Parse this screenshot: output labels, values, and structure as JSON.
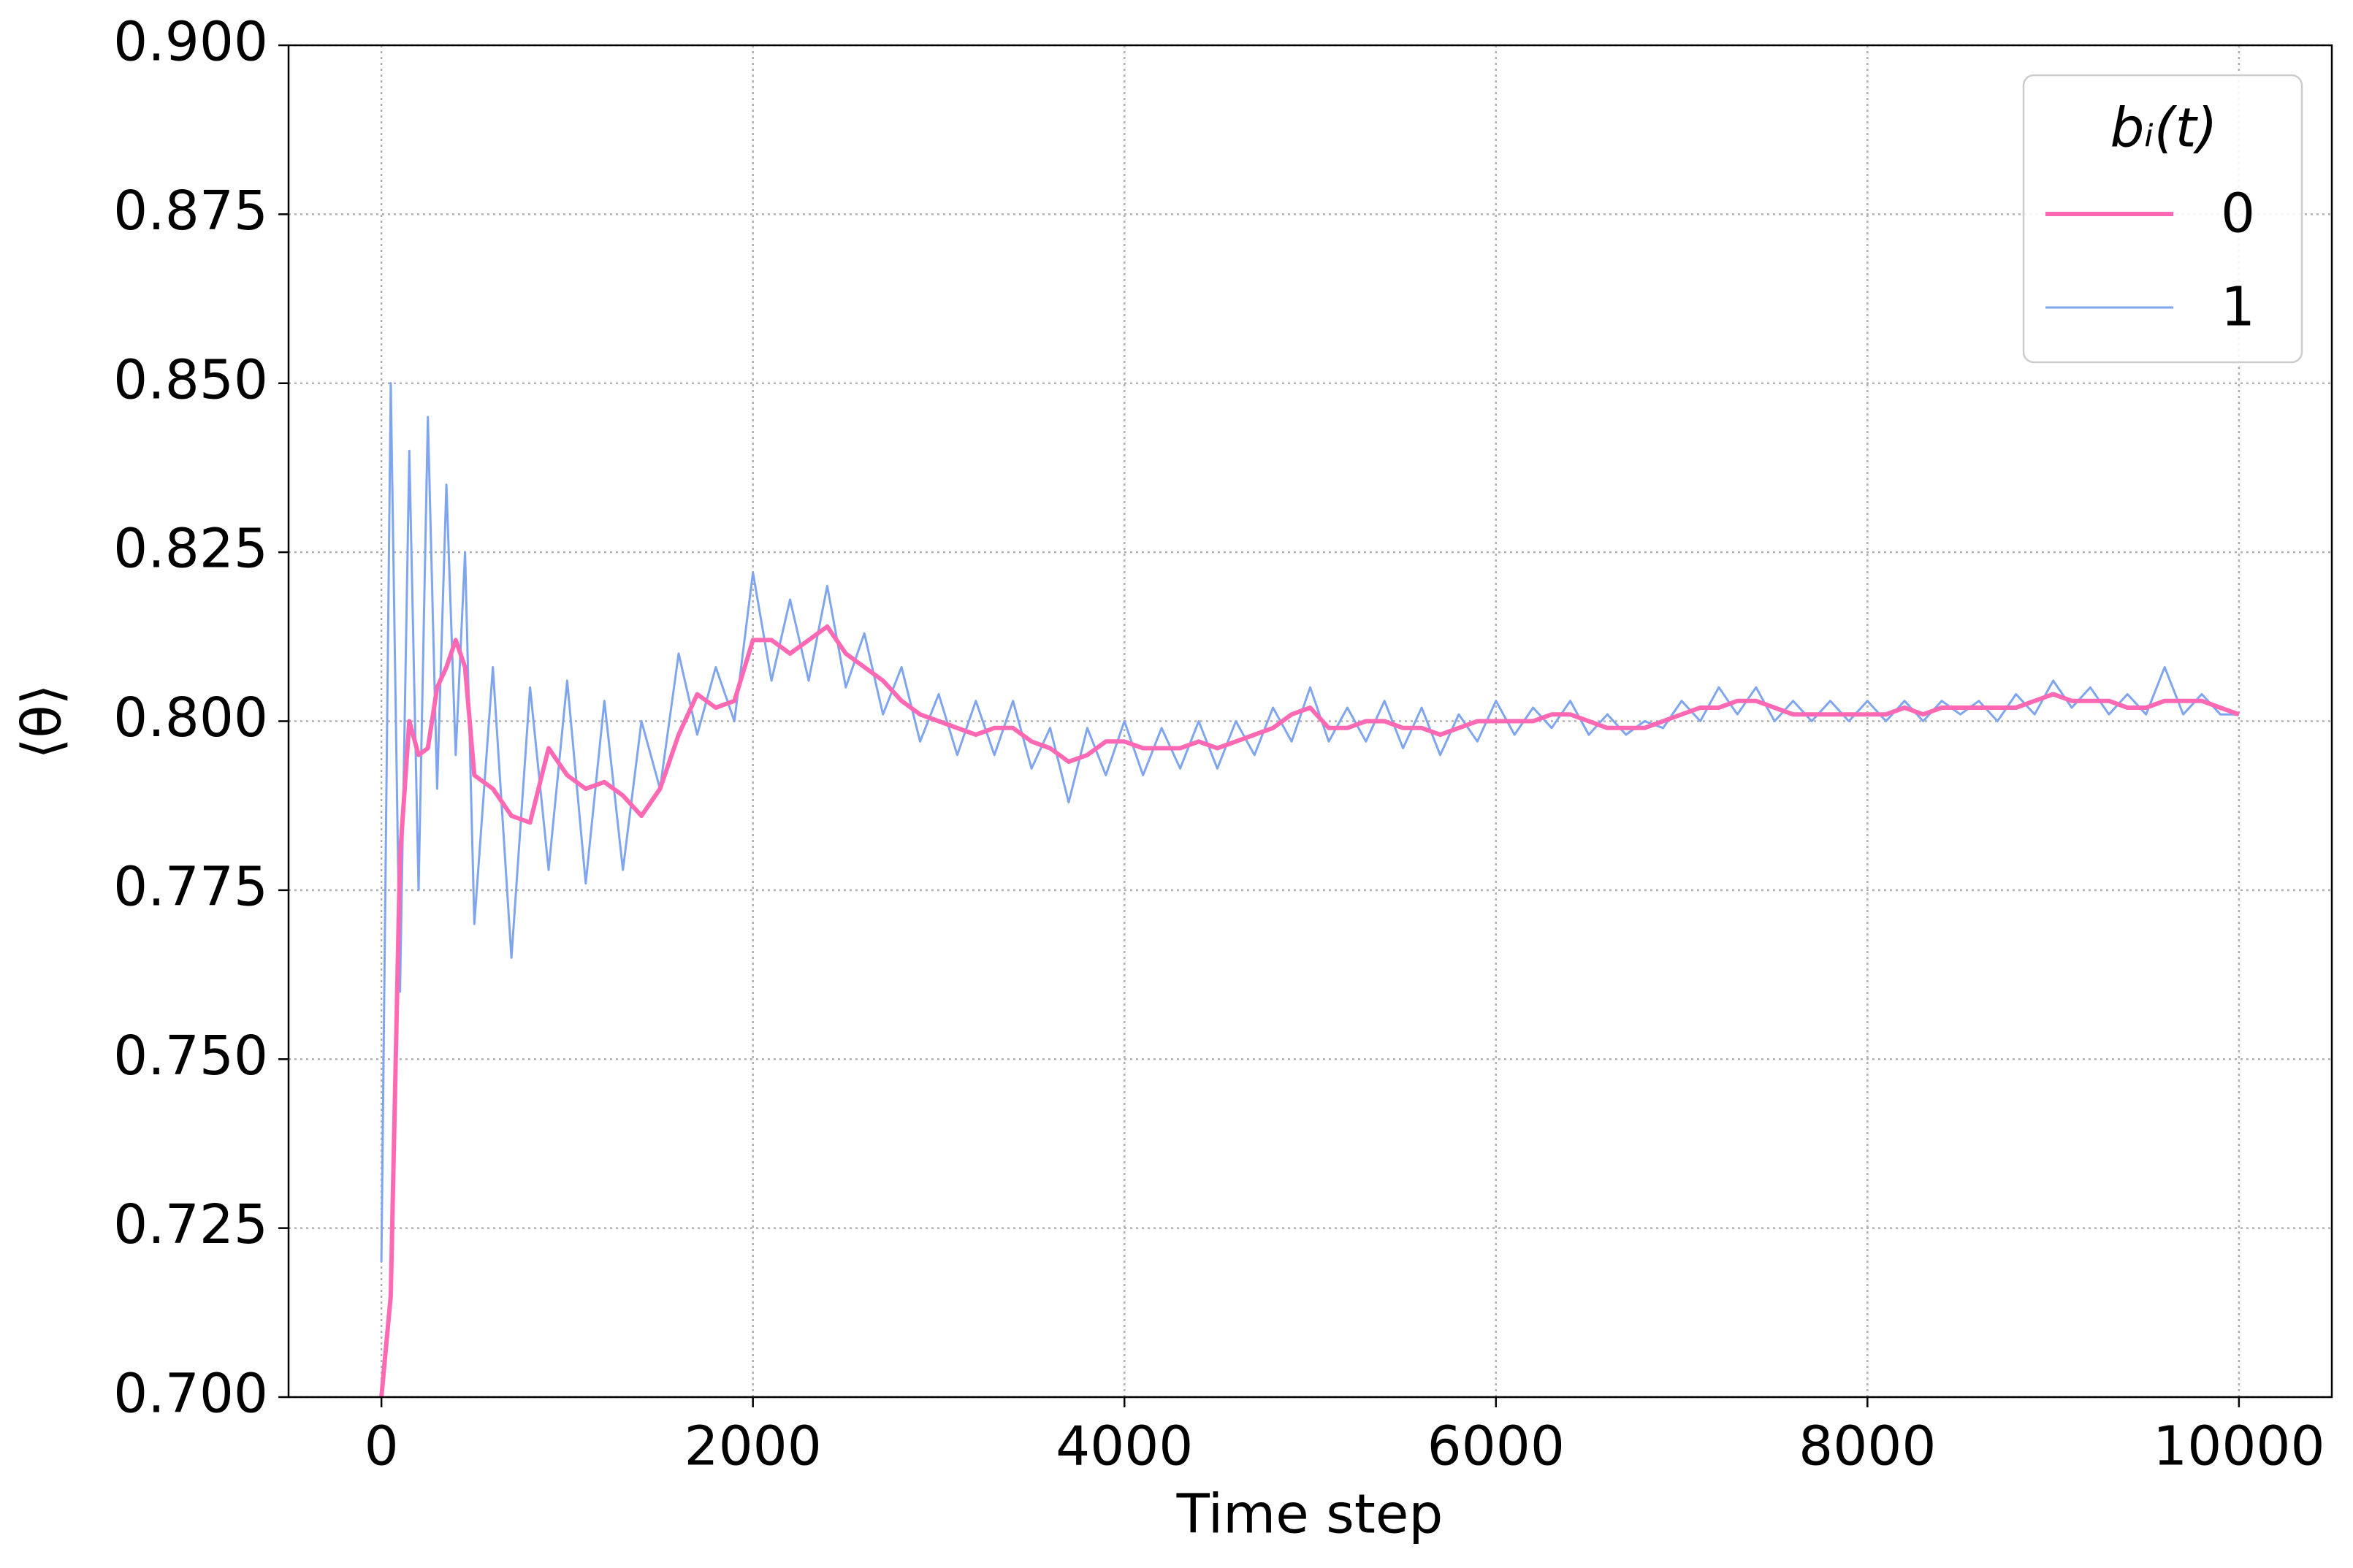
{
  "chart_data": {
    "type": "line",
    "xlabel": "Time step",
    "ylabel": "⟨θ⟩",
    "legend_title": "bᵢ(t)",
    "legend_loc": "upper right",
    "grid": true,
    "xlim": [
      -500,
      10500
    ],
    "xticks": [
      0,
      2000,
      4000,
      6000,
      8000,
      10000
    ],
    "ylim": [
      0.7,
      0.9
    ],
    "yticks": [
      {
        "value": 0.7,
        "label": "0.700"
      },
      0.725,
      {
        "value": 0.75,
        "label": "0.750"
      },
      0.775,
      {
        "value": 0.8,
        "label": "0.800"
      },
      0.825,
      {
        "value": 0.85,
        "label": "0.850"
      },
      0.875,
      {
        "value": 0.9,
        "label": "0.900"
      }
    ],
    "x": [
      0,
      50,
      100,
      150,
      200,
      250,
      300,
      350,
      400,
      450,
      500,
      600,
      700,
      800,
      900,
      1000,
      1100,
      1200,
      1300,
      1400,
      1500,
      1600,
      1700,
      1800,
      1900,
      2000,
      2100,
      2200,
      2300,
      2400,
      2500,
      2600,
      2700,
      2800,
      2900,
      3000,
      3100,
      3200,
      3300,
      3400,
      3500,
      3600,
      3700,
      3800,
      3900,
      4000,
      4100,
      4200,
      4300,
      4400,
      4500,
      4600,
      4700,
      4800,
      4900,
      5000,
      5100,
      5200,
      5300,
      5400,
      5500,
      5600,
      5700,
      5800,
      5900,
      6000,
      6100,
      6200,
      6300,
      6400,
      6500,
      6600,
      6700,
      6800,
      6900,
      7000,
      7100,
      7200,
      7300,
      7400,
      7500,
      7600,
      7700,
      7800,
      7900,
      8000,
      8100,
      8200,
      8300,
      8400,
      8500,
      8600,
      8700,
      8800,
      8900,
      9000,
      9100,
      9200,
      9300,
      9400,
      9500,
      9600,
      9700,
      9800,
      9900,
      10000
    ],
    "series": [
      {
        "name": "0",
        "color": "#ff69b4",
        "width": 6,
        "values": [
          0.7,
          0.715,
          0.78,
          0.8,
          0.795,
          0.796,
          0.805,
          0.808,
          0.812,
          0.808,
          0.792,
          0.79,
          0.786,
          0.785,
          0.796,
          0.792,
          0.79,
          0.791,
          0.789,
          0.786,
          0.79,
          0.798,
          0.804,
          0.802,
          0.803,
          0.812,
          0.812,
          0.81,
          0.812,
          0.814,
          0.81,
          0.808,
          0.806,
          0.803,
          0.801,
          0.8,
          0.799,
          0.798,
          0.799,
          0.799,
          0.797,
          0.796,
          0.794,
          0.795,
          0.797,
          0.797,
          0.796,
          0.796,
          0.796,
          0.797,
          0.796,
          0.797,
          0.798,
          0.799,
          0.801,
          0.802,
          0.799,
          0.799,
          0.8,
          0.8,
          0.799,
          0.799,
          0.798,
          0.799,
          0.8,
          0.8,
          0.8,
          0.8,
          0.801,
          0.801,
          0.8,
          0.799,
          0.799,
          0.799,
          0.8,
          0.801,
          0.802,
          0.802,
          0.803,
          0.803,
          0.802,
          0.801,
          0.801,
          0.801,
          0.801,
          0.801,
          0.801,
          0.802,
          0.801,
          0.802,
          0.802,
          0.802,
          0.802,
          0.802,
          0.803,
          0.804,
          0.803,
          0.803,
          0.803,
          0.802,
          0.802,
          0.803,
          0.803,
          0.803,
          0.802,
          0.801
        ]
      },
      {
        "name": "1",
        "color": "#7fa5ee",
        "width": 3,
        "values": [
          0.72,
          0.85,
          0.76,
          0.84,
          0.775,
          0.845,
          0.79,
          0.835,
          0.795,
          0.825,
          0.77,
          0.808,
          0.765,
          0.805,
          0.778,
          0.806,
          0.776,
          0.803,
          0.778,
          0.8,
          0.79,
          0.81,
          0.798,
          0.808,
          0.8,
          0.822,
          0.806,
          0.818,
          0.806,
          0.82,
          0.805,
          0.813,
          0.801,
          0.808,
          0.797,
          0.804,
          0.795,
          0.803,
          0.795,
          0.803,
          0.793,
          0.799,
          0.788,
          0.799,
          0.792,
          0.8,
          0.792,
          0.799,
          0.793,
          0.8,
          0.793,
          0.8,
          0.795,
          0.802,
          0.797,
          0.805,
          0.797,
          0.802,
          0.797,
          0.803,
          0.796,
          0.802,
          0.795,
          0.801,
          0.797,
          0.803,
          0.798,
          0.802,
          0.799,
          0.803,
          0.798,
          0.801,
          0.798,
          0.8,
          0.799,
          0.803,
          0.8,
          0.805,
          0.801,
          0.805,
          0.8,
          0.803,
          0.8,
          0.803,
          0.8,
          0.803,
          0.8,
          0.803,
          0.8,
          0.803,
          0.801,
          0.803,
          0.8,
          0.804,
          0.801,
          0.806,
          0.802,
          0.805,
          0.801,
          0.804,
          0.801,
          0.808,
          0.801,
          0.804,
          0.801,
          0.801
        ]
      }
    ]
  }
}
